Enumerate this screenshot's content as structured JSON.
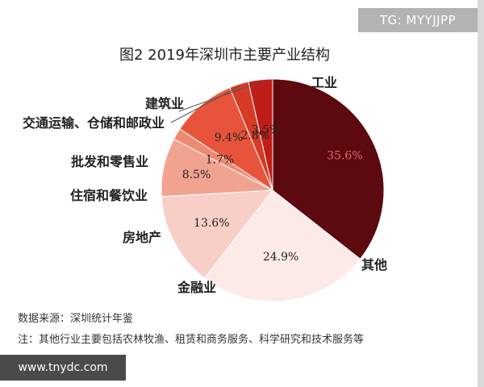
{
  "watermarks": {
    "top_right": "TG: MYYJJPP",
    "bottom_left": "www.tnydc.com"
  },
  "chart_data": {
    "type": "pie",
    "title": "图2   2019年深圳市主要产业结构",
    "slices": [
      {
        "category": "工业",
        "value": 35.6,
        "label": "35.6%",
        "color": "#5c0a10"
      },
      {
        "category": "其他",
        "value": 24.9,
        "label": "24.9%",
        "color": "#fbeae6"
      },
      {
        "category": "金融业",
        "value": 13.6,
        "label": "13.6%",
        "color": "#f7cfc6"
      },
      {
        "category": "房地产",
        "value": 8.5,
        "label": "8.5%",
        "color": "#f1a390"
      },
      {
        "category": "住宿和餐饮业",
        "value": 1.7,
        "label": "1.7%",
        "color": "#ef8a72"
      },
      {
        "category": "批发和零售业",
        "value": 9.4,
        "label": "9.4%",
        "color": "#e8543b"
      },
      {
        "category": "交通运输、仓储和邮政业",
        "value": 2.8,
        "label": "2.8%",
        "color": "#d63a26"
      },
      {
        "category": "建筑业",
        "value": 3.5,
        "label": "3.5%",
        "color": "#bf1e18"
      }
    ],
    "source": "数据来源：深圳统计年鉴",
    "note": "注：其他行业主要包括农林牧渔、租赁和商务服务、科学研究和技术服务等"
  }
}
